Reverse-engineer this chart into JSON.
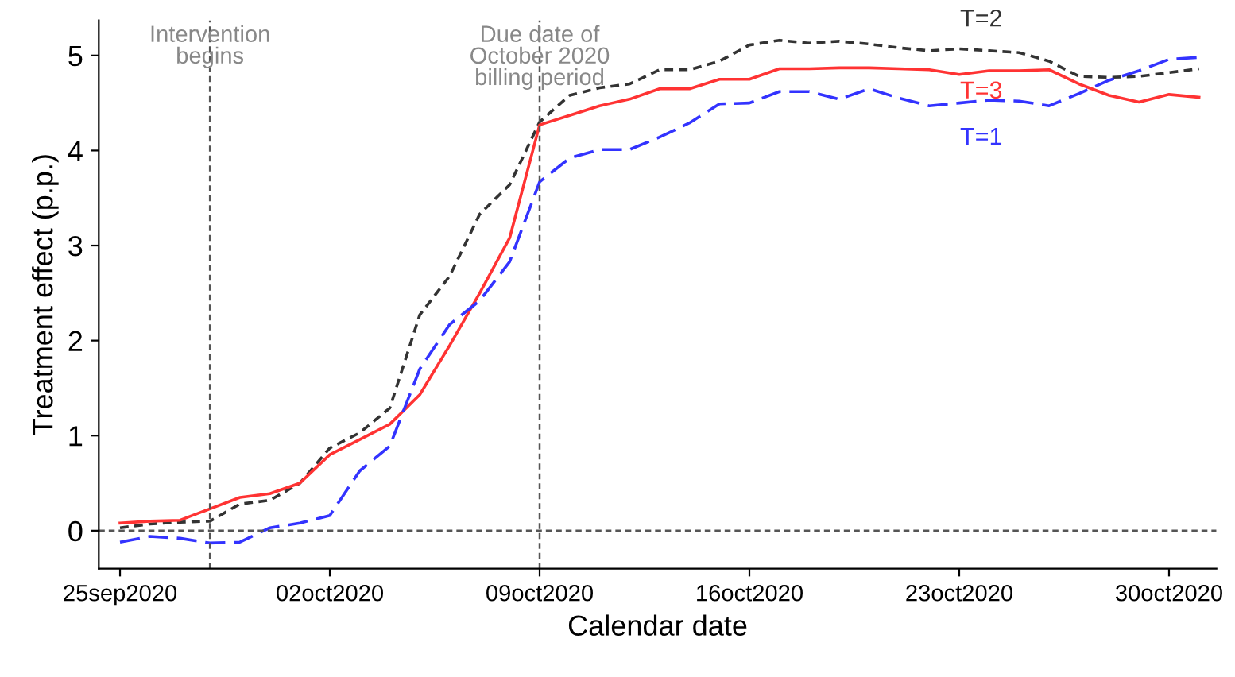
{
  "chart_data": {
    "type": "line",
    "xlabel": "Calendar date",
    "ylabel": "Treatment effect (p.p.)",
    "x": [
      "2020-09-25",
      "2020-09-26",
      "2020-09-27",
      "2020-09-28",
      "2020-09-29",
      "2020-09-30",
      "2020-10-01",
      "2020-10-02",
      "2020-10-03",
      "2020-10-04",
      "2020-10-05",
      "2020-10-06",
      "2020-10-07",
      "2020-10-08",
      "2020-10-09",
      "2020-10-10",
      "2020-10-11",
      "2020-10-12",
      "2020-10-13",
      "2020-10-14",
      "2020-10-15",
      "2020-10-16",
      "2020-10-17",
      "2020-10-18",
      "2020-10-19",
      "2020-10-20",
      "2020-10-21",
      "2020-10-22",
      "2020-10-23",
      "2020-10-24",
      "2020-10-25",
      "2020-10-26",
      "2020-10-27",
      "2020-10-28",
      "2020-10-29",
      "2020-10-30",
      "2020-10-31"
    ],
    "series": [
      {
        "name": "T=2",
        "color": "#333333",
        "line_style": "dotted",
        "values": [
          0.03,
          0.07,
          0.09,
          0.1,
          0.28,
          0.32,
          0.5,
          0.87,
          1.03,
          1.29,
          2.27,
          2.68,
          3.33,
          3.64,
          4.3,
          4.58,
          4.66,
          4.7,
          4.85,
          4.85,
          4.94,
          5.11,
          5.16,
          5.13,
          5.15,
          5.12,
          5.08,
          5.05,
          5.07,
          5.05,
          5.03,
          4.94,
          4.78,
          4.77,
          4.78,
          4.82,
          4.86
        ]
      },
      {
        "name": "T=3",
        "color": "#ff3333",
        "line_style": "solid",
        "values": [
          0.08,
          0.1,
          0.11,
          0.23,
          0.35,
          0.39,
          0.5,
          0.8,
          0.96,
          1.12,
          1.43,
          1.95,
          2.5,
          3.08,
          4.27,
          4.37,
          4.47,
          4.54,
          4.65,
          4.65,
          4.75,
          4.75,
          4.86,
          4.86,
          4.87,
          4.87,
          4.86,
          4.85,
          4.8,
          4.84,
          4.84,
          4.85,
          4.7,
          4.58,
          4.51,
          4.59,
          4.56
        ]
      },
      {
        "name": "T=1",
        "color": "#3333ff",
        "line_style": "dashed",
        "values": [
          -0.12,
          -0.06,
          -0.08,
          -0.13,
          -0.12,
          0.03,
          0.08,
          0.16,
          0.63,
          0.89,
          1.7,
          2.17,
          2.42,
          2.83,
          3.67,
          3.92,
          4.01,
          4.01,
          4.14,
          4.29,
          4.49,
          4.5,
          4.62,
          4.62,
          4.54,
          4.65,
          4.55,
          4.47,
          4.5,
          4.53,
          4.52,
          4.47,
          4.6,
          4.74,
          4.84,
          4.96,
          4.98
        ]
      }
    ],
    "xlim": [
      "2020-09-24T07:00",
      "2020-10-31T14:00"
    ],
    "xticks": [
      {
        "value": "2020-09-25",
        "label": "25sep2020"
      },
      {
        "value": "2020-10-02",
        "label": "02oct2020"
      },
      {
        "value": "2020-10-09",
        "label": "09oct2020"
      },
      {
        "value": "2020-10-16",
        "label": "16oct2020"
      },
      {
        "value": "2020-10-23",
        "label": "23oct2020"
      },
      {
        "value": "2020-10-30",
        "label": "30oct2020"
      }
    ],
    "ylim": [
      -0.4,
      5.37
    ],
    "yticks": [
      0,
      1,
      2,
      3,
      4,
      5
    ],
    "ref_lines": [
      {
        "axis": "y",
        "value": 0,
        "label": null,
        "color": "#555555",
        "line_style": "dotted"
      },
      {
        "axis": "x",
        "value": "2020-09-28",
        "label": "Intervention\nbegins",
        "color": "#555555",
        "line_style": "dotted"
      },
      {
        "axis": "x",
        "value": "2020-10-09",
        "label": "Due date of\nOctober 2020\nbilling period",
        "color": "#555555",
        "line_style": "dotted"
      }
    ],
    "grid": false,
    "legend": false,
    "marker": "none"
  }
}
